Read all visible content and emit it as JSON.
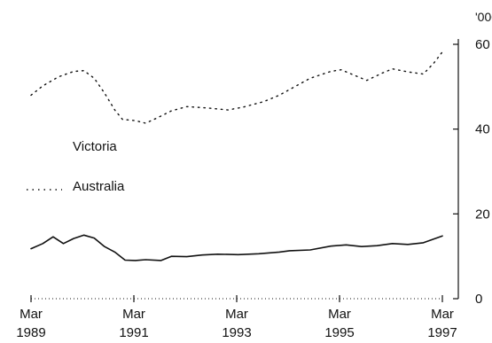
{
  "chart_data": {
    "type": "line",
    "y_unit": "'000",
    "ylim": [
      0,
      60
    ],
    "y_ticks": [
      0,
      20,
      40,
      60
    ],
    "x_range": [
      1989.17,
      1997.17
    ],
    "x_ticks": [
      {
        "x": 1989.17,
        "month": "Mar",
        "year": "1989"
      },
      {
        "x": 1991.17,
        "month": "Mar",
        "year": "1991"
      },
      {
        "x": 1993.17,
        "month": "Mar",
        "year": "1993"
      },
      {
        "x": 1995.17,
        "month": "Mar",
        "year": "1995"
      },
      {
        "x": 1997.17,
        "month": "Mar",
        "year": "1997"
      }
    ],
    "grid": false,
    "legend_position": "left",
    "series": [
      {
        "name": "Victoria",
        "style": "solid",
        "color": "#111111",
        "points": [
          [
            1989.17,
            11.8
          ],
          [
            1989.4,
            13.0
          ],
          [
            1989.6,
            14.6
          ],
          [
            1989.8,
            13.0
          ],
          [
            1990.0,
            14.2
          ],
          [
            1990.2,
            15.0
          ],
          [
            1990.4,
            14.3
          ],
          [
            1990.6,
            12.3
          ],
          [
            1990.8,
            11.0
          ],
          [
            1991.0,
            9.1
          ],
          [
            1991.2,
            9.0
          ],
          [
            1991.4,
            9.2
          ],
          [
            1991.7,
            9.0
          ],
          [
            1991.9,
            10.0
          ],
          [
            1992.2,
            9.9
          ],
          [
            1992.5,
            10.3
          ],
          [
            1992.8,
            10.5
          ],
          [
            1993.2,
            10.4
          ],
          [
            1993.6,
            10.6
          ],
          [
            1994.0,
            11.0
          ],
          [
            1994.2,
            11.3
          ],
          [
            1994.6,
            11.5
          ],
          [
            1995.0,
            12.4
          ],
          [
            1995.3,
            12.7
          ],
          [
            1995.6,
            12.3
          ],
          [
            1995.9,
            12.5
          ],
          [
            1996.2,
            13.0
          ],
          [
            1996.5,
            12.8
          ],
          [
            1996.8,
            13.2
          ],
          [
            1997.17,
            14.8
          ]
        ]
      },
      {
        "name": "Australia",
        "style": "dotted",
        "color": "#111111",
        "points": [
          [
            1989.17,
            48.0
          ],
          [
            1989.4,
            50.2
          ],
          [
            1989.7,
            52.3
          ],
          [
            1990.0,
            53.6
          ],
          [
            1990.2,
            53.8
          ],
          [
            1990.4,
            52.0
          ],
          [
            1990.6,
            48.5
          ],
          [
            1990.8,
            44.5
          ],
          [
            1990.95,
            42.3
          ],
          [
            1991.2,
            42.0
          ],
          [
            1991.4,
            41.4
          ],
          [
            1991.6,
            42.5
          ],
          [
            1991.9,
            44.3
          ],
          [
            1992.2,
            45.3
          ],
          [
            1992.6,
            45.0
          ],
          [
            1993.0,
            44.5
          ],
          [
            1993.3,
            45.2
          ],
          [
            1993.7,
            46.5
          ],
          [
            1994.0,
            48.0
          ],
          [
            1994.3,
            50.0
          ],
          [
            1994.6,
            52.0
          ],
          [
            1995.0,
            53.6
          ],
          [
            1995.2,
            54.0
          ],
          [
            1995.5,
            52.5
          ],
          [
            1995.7,
            51.5
          ],
          [
            1996.0,
            53.2
          ],
          [
            1996.2,
            54.2
          ],
          [
            1996.5,
            53.5
          ],
          [
            1996.8,
            53.0
          ],
          [
            1997.0,
            55.5
          ],
          [
            1997.17,
            58.2
          ]
        ]
      }
    ]
  }
}
